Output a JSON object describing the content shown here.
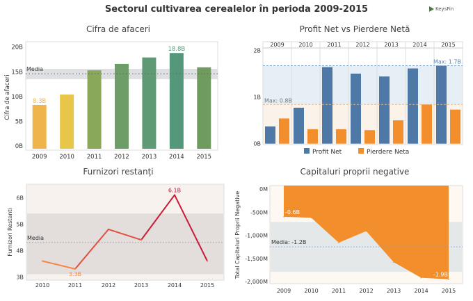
{
  "header": {
    "title": "Sectorul cultivarea cerealelor în perioda 2009-2015",
    "logo_text": "KeysFin"
  },
  "chart_data": [
    {
      "type": "bar",
      "title": "Cifra de afaceri",
      "ylabel": "Cifra de afaceri",
      "xlabel": "",
      "categories": [
        "2009",
        "2010",
        "2011",
        "2012",
        "2013",
        "2014",
        "2015"
      ],
      "values": [
        8.3,
        10.4,
        15.3,
        16.6,
        17.9,
        18.8,
        15.9
      ],
      "bar_colors": [
        "#f0b44c",
        "#e8c64a",
        "#8aa85a",
        "#6e9e68",
        "#5e9a74",
        "#55977a",
        "#6f9c5e"
      ],
      "ylim": [
        0,
        20
      ],
      "yticks": [
        "0B",
        "5B",
        "10B",
        "15B",
        "20B"
      ],
      "data_labels": [
        {
          "index": 0,
          "text": "8.3B",
          "color": "#f0b44c"
        },
        {
          "index": 5,
          "text": "18.8B",
          "color": "#4f9a7c"
        }
      ],
      "reference_line": {
        "label": "Media",
        "value": 14.6,
        "band": [
          13.5,
          15.6
        ]
      },
      "grid": false
    },
    {
      "type": "bar",
      "title": "Profit Net vs Pierdere Netă",
      "categories": [
        "2009",
        "2010",
        "2011",
        "2012",
        "2013",
        "2014",
        "2015"
      ],
      "series": [
        {
          "name": "Profit Net",
          "color": "#4e79a7",
          "values": [
            0.37,
            0.77,
            1.64,
            1.5,
            1.44,
            1.61,
            1.67
          ]
        },
        {
          "name": "Pierdere Neta",
          "color": "#f28e2b",
          "values": [
            0.54,
            0.31,
            0.31,
            0.29,
            0.5,
            0.84,
            0.73
          ]
        }
      ],
      "ylim": [
        0,
        2
      ],
      "yticks": [
        "0B",
        "1B",
        "2B"
      ],
      "reference_lines": [
        {
          "label": "Max: 1.7B",
          "value": 1.67,
          "color": "#7ea6cf"
        },
        {
          "label": "Max: 0.8B",
          "value": 0.84,
          "color": "#e0b890"
        }
      ],
      "legend": "bottom",
      "grid": false
    },
    {
      "type": "line",
      "title": "Furnizori restanți",
      "ylabel": "Furnizori Restanti",
      "categories": [
        "2010",
        "2011",
        "2012",
        "2013",
        "2014",
        "2015"
      ],
      "values": [
        3.6,
        3.3,
        4.8,
        4.4,
        6.1,
        3.6
      ],
      "ylim": [
        2.9,
        6.4
      ],
      "yticks": [
        "3B",
        "4B",
        "5B",
        "6B"
      ],
      "data_labels": [
        {
          "index": 1,
          "text": "3.3B",
          "color": "#f28e50"
        },
        {
          "index": 4,
          "text": "6.1B",
          "color": "#c0183a"
        }
      ],
      "reference_line": {
        "label": "Media",
        "value": 4.3,
        "band": [
          3.1,
          5.4
        ]
      },
      "grid": false
    },
    {
      "type": "area",
      "title": "Capitaluri proprii negative",
      "ylabel": "Total Capitaluri Proprii Negative",
      "categories": [
        "2009",
        "2010",
        "2011",
        "2012",
        "2013",
        "2014",
        "2015"
      ],
      "values": [
        -600,
        -620,
        -1160,
        -910,
        -1580,
        -1920,
        -1950
      ],
      "color": "#f28e2b",
      "ylim": [
        -2000,
        0
      ],
      "yticks": [
        "-2,000M",
        "-1,500M",
        "-1,000M",
        "-500M",
        "0M"
      ],
      "data_labels": [
        {
          "index": 0,
          "text": "-0.6B"
        },
        {
          "index": 6,
          "text": "-1.9B"
        }
      ],
      "reference_line": {
        "label": "Media: -1.2B",
        "value": -1250,
        "band": [
          -1790,
          -710
        ]
      },
      "grid": false
    }
  ]
}
